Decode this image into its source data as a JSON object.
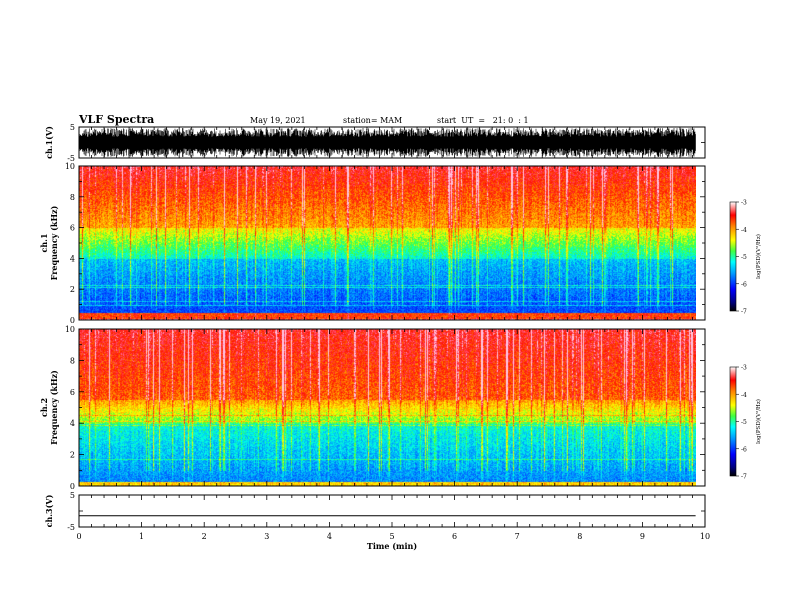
{
  "header": {
    "title": "VLF Spectra",
    "date": "May 19, 2021",
    "station": "station= MAM",
    "start": "start  UT  =   21: 0  : 1"
  },
  "chart_data": [
    {
      "type": "line",
      "panel": "ch1-waveform",
      "ylabel": "ch.1(V)",
      "ylim": [
        -5,
        5
      ],
      "yticks": [
        "5",
        "-5"
      ],
      "xlim": [
        0,
        10
      ],
      "description_values": {
        "amplitude_range": [
          -5,
          5
        ]
      }
    },
    {
      "type": "heatmap",
      "panel": "ch1-spectrogram",
      "ylabel": "ch.1\nFrequency (kHz)",
      "ylim": [
        0,
        10
      ],
      "yticks": [
        "0",
        "2",
        "4",
        "6",
        "8",
        "10"
      ],
      "xlim": [
        0,
        9.85
      ],
      "colorbar": {
        "label": "log(PSD)(V²/Hz)",
        "range": [
          -7,
          -3
        ],
        "ticks": [
          "-3",
          "-4",
          "-5",
          "-6",
          "-7"
        ]
      }
    },
    {
      "type": "heatmap",
      "panel": "ch2-spectrogram",
      "ylabel": "ch.2\nFrequency (kHz)",
      "ylim": [
        0,
        10
      ],
      "yticks": [
        "0",
        "2",
        "4",
        "6",
        "8",
        "10"
      ],
      "xlim": [
        0,
        9.85
      ],
      "colorbar": {
        "label": "log(PSD)(V²/Hz)",
        "range": [
          -7,
          -3
        ],
        "ticks": [
          "-3",
          "-4",
          "-5",
          "-6",
          "-7"
        ]
      }
    },
    {
      "type": "line",
      "panel": "ch3-waveform",
      "ylabel": "ch.3(V)",
      "ylim": [
        -5,
        5
      ],
      "yticks": [
        "5",
        "-5"
      ],
      "x": [
        0,
        9.85
      ],
      "y": [
        -1.5,
        -1.5
      ]
    }
  ],
  "xaxis": {
    "label": "Time  (min)",
    "ticks": [
      "0",
      "1",
      "2",
      "3",
      "4",
      "5",
      "6",
      "7",
      "8",
      "9",
      "10"
    ]
  },
  "labels": {
    "ch1_wave_y": "ch.1(V)",
    "ch1_spec_y1": "ch.1",
    "ch1_spec_y2": "Frequency  (kHz)",
    "ch2_spec_y1": "ch.2",
    "ch2_spec_y2": "Frequency  (kHz)",
    "ch3_wave_y": "ch.3(V)",
    "cbar_label": "log(PSD)(V²/Hz)"
  }
}
